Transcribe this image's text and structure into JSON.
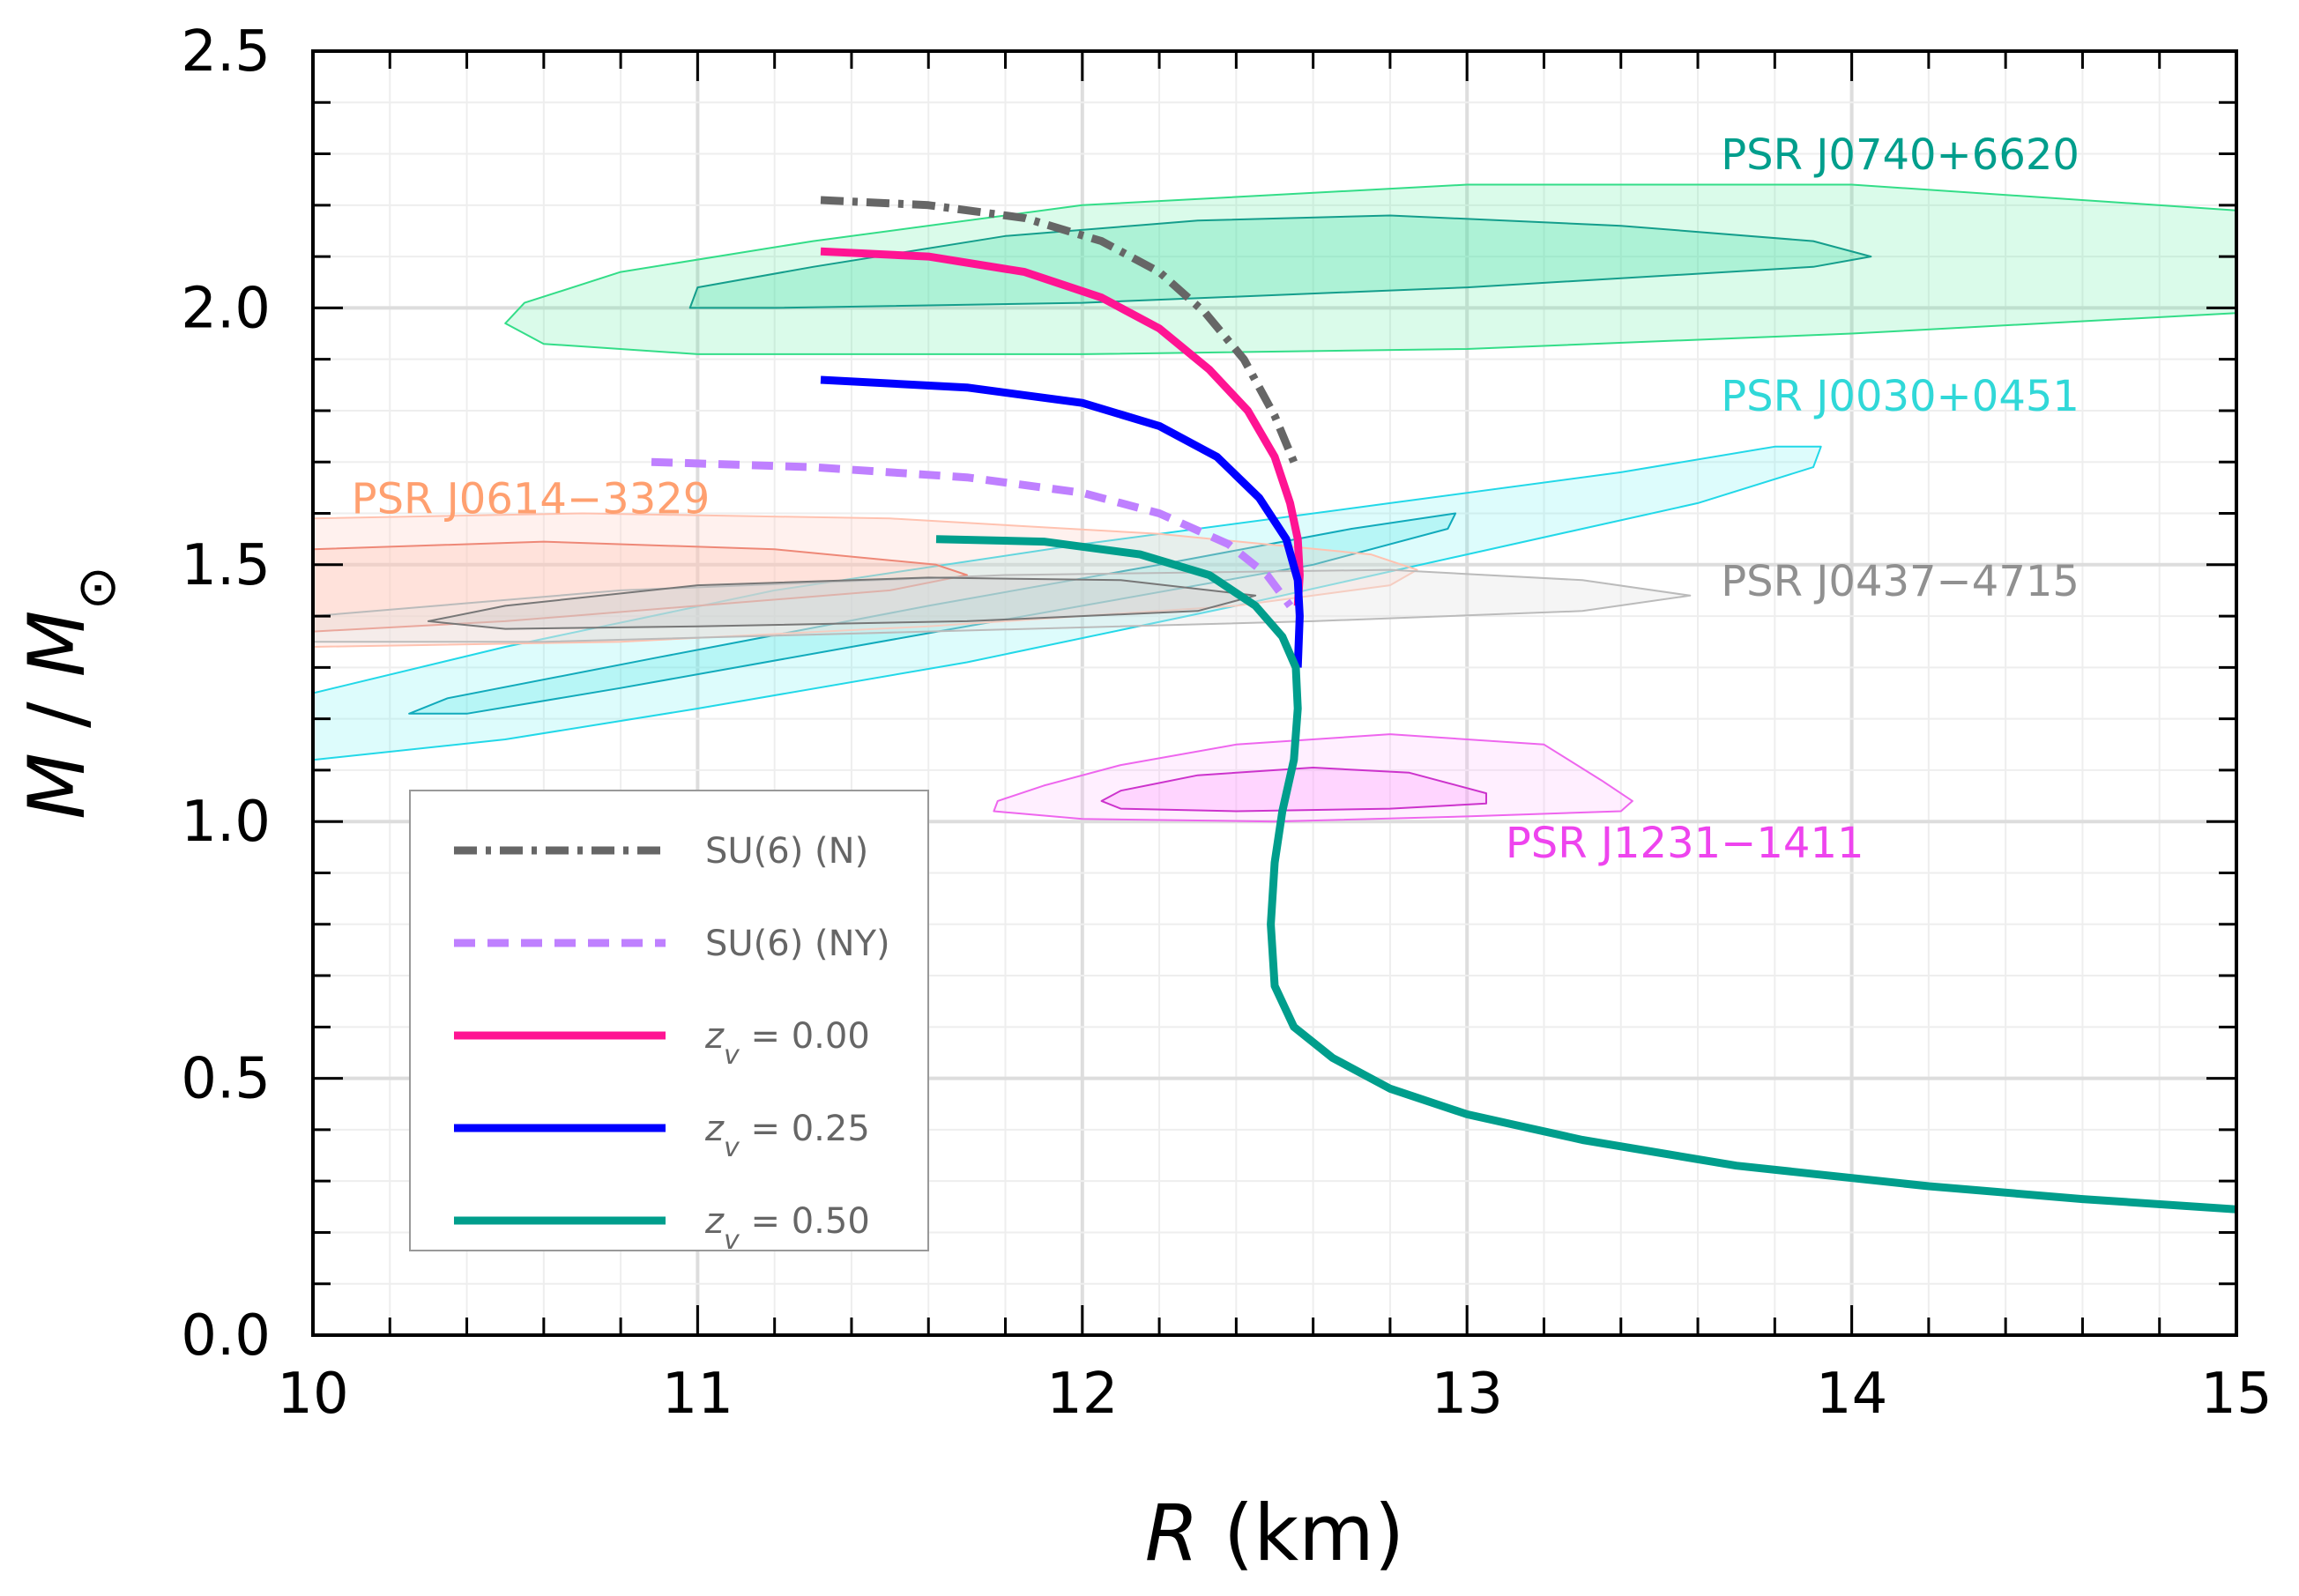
{
  "chart_data": {
    "type": "line",
    "xlabel": "R (km)",
    "xlabel_var": "R",
    "xlabel_unit": " (km)",
    "ylabel": "M / M⊙",
    "ylabel_var": "M",
    "ylabel_sep": " / ",
    "ylabel_sub": "M",
    "ylabel_sun": "⊙",
    "xlim": [
      10,
      15
    ],
    "ylim": [
      0,
      2.5
    ],
    "grid": true,
    "x_ticks": [
      10,
      11,
      12,
      13,
      14,
      15
    ],
    "y_ticks": [
      0.0,
      0.5,
      1.0,
      1.5,
      2.0,
      2.5
    ],
    "x_tick_labels": [
      "10",
      "11",
      "12",
      "13",
      "14",
      "15"
    ],
    "y_tick_labels": [
      "0.0",
      "0.5",
      "1.0",
      "1.5",
      "2.0",
      "2.5"
    ],
    "legend_location": "lower-left",
    "series": [
      {
        "name": "SU(6) (N)",
        "name_main": "SU(6) (N)",
        "color": "#666666",
        "style": "dashdot",
        "points": [
          [
            11.32,
            2.21
          ],
          [
            11.6,
            2.2
          ],
          [
            11.85,
            2.175
          ],
          [
            12.05,
            2.13
          ],
          [
            12.2,
            2.07
          ],
          [
            12.32,
            1.99
          ],
          [
            12.42,
            1.9
          ],
          [
            12.5,
            1.79
          ],
          [
            12.55,
            1.7
          ]
        ]
      },
      {
        "name": "SU(6) (NY)",
        "name_main": "SU(6) (NY)",
        "color": "#bf80ff",
        "style": "dashed",
        "points": [
          [
            10.88,
            1.7
          ],
          [
            11.3,
            1.69
          ],
          [
            11.7,
            1.67
          ],
          [
            12.0,
            1.64
          ],
          [
            12.2,
            1.6
          ],
          [
            12.38,
            1.54
          ],
          [
            12.48,
            1.48
          ],
          [
            12.54,
            1.42
          ]
        ]
      },
      {
        "name": "zv = 0.00",
        "name_var": "z",
        "name_sub": "v",
        "name_rest": " = 0.00",
        "color": "#ff1493",
        "style": "solid",
        "points": [
          [
            11.32,
            2.11
          ],
          [
            11.6,
            2.1
          ],
          [
            11.85,
            2.07
          ],
          [
            12.05,
            2.02
          ],
          [
            12.2,
            1.96
          ],
          [
            12.33,
            1.88
          ],
          [
            12.43,
            1.8
          ],
          [
            12.5,
            1.71
          ],
          [
            12.54,
            1.62
          ],
          [
            12.56,
            1.55
          ],
          [
            12.565,
            1.48
          ],
          [
            12.56,
            1.42
          ]
        ]
      },
      {
        "name": "zv = 0.25",
        "name_var": "z",
        "name_sub": "v",
        "name_rest": " = 0.25",
        "color": "#0000ff",
        "style": "solid",
        "points": [
          [
            11.32,
            1.86
          ],
          [
            11.7,
            1.845
          ],
          [
            12.0,
            1.815
          ],
          [
            12.2,
            1.77
          ],
          [
            12.35,
            1.71
          ],
          [
            12.46,
            1.63
          ],
          [
            12.53,
            1.55
          ],
          [
            12.56,
            1.47
          ],
          [
            12.565,
            1.4
          ],
          [
            12.56,
            1.3
          ]
        ]
      },
      {
        "name": "zv = 0.50",
        "name_var": "z",
        "name_sub": "v",
        "name_rest": " = 0.50",
        "color": "#009e8c",
        "style": "solid",
        "points": [
          [
            11.62,
            1.55
          ],
          [
            11.9,
            1.545
          ],
          [
            12.15,
            1.52
          ],
          [
            12.33,
            1.48
          ],
          [
            12.45,
            1.42
          ],
          [
            12.52,
            1.36
          ],
          [
            12.555,
            1.3
          ],
          [
            12.56,
            1.22
          ],
          [
            12.55,
            1.12
          ],
          [
            12.52,
            1.02
          ],
          [
            12.5,
            0.92
          ],
          [
            12.49,
            0.8
          ],
          [
            12.5,
            0.68
          ],
          [
            12.55,
            0.6
          ],
          [
            12.65,
            0.54
          ],
          [
            12.8,
            0.48
          ],
          [
            13.0,
            0.43
          ],
          [
            13.3,
            0.38
          ],
          [
            13.7,
            0.33
          ],
          [
            14.2,
            0.29
          ],
          [
            14.6,
            0.265
          ],
          [
            15.0,
            0.245
          ]
        ]
      }
    ],
    "regions": [
      {
        "name": "PSR J0740+6620",
        "label_color": "#009e8c",
        "outer": {
          "fill": "#55eea0",
          "stroke": "#33dd88",
          "fill_opacity": 0.22,
          "points": [
            [
              10.5,
              1.97
            ],
            [
              10.55,
              2.01
            ],
            [
              10.8,
              2.07
            ],
            [
              11.3,
              2.13
            ],
            [
              12.0,
              2.2
            ],
            [
              13.0,
              2.24
            ],
            [
              14.0,
              2.24
            ],
            [
              15.0,
              2.19
            ],
            [
              15.0,
              1.99
            ],
            [
              14.0,
              1.95
            ],
            [
              13.0,
              1.92
            ],
            [
              12.0,
              1.91
            ],
            [
              11.0,
              1.91
            ],
            [
              10.6,
              1.93
            ]
          ]
        },
        "inner": {
          "fill": "#44ddaa",
          "stroke": "#149e8c",
          "fill_opacity": 0.3,
          "points": [
            [
              10.98,
              2.0
            ],
            [
              11.0,
              2.04
            ],
            [
              11.3,
              2.08
            ],
            [
              11.8,
              2.14
            ],
            [
              12.3,
              2.17
            ],
            [
              12.8,
              2.18
            ],
            [
              13.4,
              2.16
            ],
            [
              13.9,
              2.13
            ],
            [
              14.05,
              2.1
            ],
            [
              13.9,
              2.08
            ],
            [
              13.0,
              2.04
            ],
            [
              12.0,
              2.01
            ],
            [
              11.2,
              2.0
            ]
          ]
        }
      },
      {
        "name": "PSR J0030+0451",
        "label_color": "#30d8d8",
        "outer": {
          "fill": "#66f2f2",
          "stroke": "#22d8e8",
          "fill_opacity": 0.22,
          "points": [
            [
              10.0,
              1.25
            ],
            [
              10.5,
              1.34
            ],
            [
              11.2,
              1.45
            ],
            [
              12.0,
              1.54
            ],
            [
              12.8,
              1.62
            ],
            [
              13.4,
              1.68
            ],
            [
              13.8,
              1.73
            ],
            [
              13.92,
              1.73
            ],
            [
              13.9,
              1.69
            ],
            [
              13.6,
              1.62
            ],
            [
              13.0,
              1.52
            ],
            [
              12.4,
              1.42
            ],
            [
              11.7,
              1.31
            ],
            [
              11.0,
              1.22
            ],
            [
              10.5,
              1.16
            ],
            [
              10.0,
              1.12
            ]
          ]
        },
        "inner": {
          "fill": "#55e5e5",
          "stroke": "#11aabb",
          "fill_opacity": 0.28,
          "points": [
            [
              10.25,
              1.21
            ],
            [
              10.35,
              1.24
            ],
            [
              10.9,
              1.32
            ],
            [
              11.6,
              1.42
            ],
            [
              12.2,
              1.5
            ],
            [
              12.7,
              1.57
            ],
            [
              12.97,
              1.6
            ],
            [
              12.95,
              1.57
            ],
            [
              12.6,
              1.5
            ],
            [
              12.0,
              1.42
            ],
            [
              11.4,
              1.34
            ],
            [
              10.8,
              1.26
            ],
            [
              10.4,
              1.21
            ]
          ]
        }
      },
      {
        "name": "PSR J0614−3329",
        "label_color": "#ffa070",
        "outer": {
          "fill": "#ffd0c8",
          "stroke": "#ffc2b0",
          "fill_opacity": 0.3,
          "points": [
            [
              10.0,
              1.59
            ],
            [
              10.7,
              1.6
            ],
            [
              11.5,
              1.59
            ],
            [
              12.2,
              1.56
            ],
            [
              12.75,
              1.52
            ],
            [
              12.87,
              1.49
            ],
            [
              12.8,
              1.46
            ],
            [
              12.4,
              1.42
            ],
            [
              11.6,
              1.38
            ],
            [
              10.8,
              1.35
            ],
            [
              10.0,
              1.34
            ]
          ]
        },
        "inner": {
          "fill": "#ffc0b0",
          "stroke": "#ee8877",
          "fill_opacity": 0.3,
          "points": [
            [
              10.0,
              1.53
            ],
            [
              10.6,
              1.545
            ],
            [
              11.2,
              1.53
            ],
            [
              11.62,
              1.5
            ],
            [
              11.7,
              1.48
            ],
            [
              11.5,
              1.45
            ],
            [
              11.0,
              1.42
            ],
            [
              10.5,
              1.39
            ],
            [
              10.0,
              1.37
            ]
          ]
        }
      },
      {
        "name": "PSR J0437−4715",
        "label_color": "#909090",
        "outer": {
          "fill": "#e2e2e2",
          "stroke": "#bbbbbb",
          "fill_opacity": 0.35,
          "points": [
            [
              10.0,
              1.4
            ],
            [
              10.8,
              1.45
            ],
            [
              11.8,
              1.48
            ],
            [
              12.8,
              1.49
            ],
            [
              13.3,
              1.47
            ],
            [
              13.58,
              1.44
            ],
            [
              13.3,
              1.41
            ],
            [
              12.6,
              1.39
            ],
            [
              11.6,
              1.37
            ],
            [
              10.6,
              1.35
            ],
            [
              10.0,
              1.35
            ]
          ]
        },
        "inner": {
          "fill": "#c8c8c8",
          "stroke": "#777777",
          "fill_opacity": 0.35,
          "points": [
            [
              10.3,
              1.39
            ],
            [
              10.5,
              1.42
            ],
            [
              11.0,
              1.46
            ],
            [
              11.6,
              1.475
            ],
            [
              12.1,
              1.47
            ],
            [
              12.45,
              1.44
            ],
            [
              12.3,
              1.41
            ],
            [
              11.7,
              1.39
            ],
            [
              11.0,
              1.38
            ],
            [
              10.5,
              1.375
            ]
          ]
        }
      },
      {
        "name": "PSR J1231−1411",
        "label_color": "#ee44ee",
        "outer": {
          "fill": "#ffb8ff",
          "stroke": "#ee66ee",
          "fill_opacity": 0.22,
          "points": [
            [
              11.77,
              1.02
            ],
            [
              11.78,
              1.04
            ],
            [
              11.9,
              1.07
            ],
            [
              12.1,
              1.11
            ],
            [
              12.4,
              1.15
            ],
            [
              12.8,
              1.17
            ],
            [
              13.2,
              1.15
            ],
            [
              13.35,
              1.08
            ],
            [
              13.43,
              1.04
            ],
            [
              13.4,
              1.02
            ],
            [
              13.0,
              1.01
            ],
            [
              12.5,
              1.0
            ],
            [
              12.0,
              1.005
            ]
          ]
        },
        "inner": {
          "fill": "#ff99ff",
          "stroke": "#cc33cc",
          "fill_opacity": 0.3,
          "points": [
            [
              12.05,
              1.04
            ],
            [
              12.1,
              1.06
            ],
            [
              12.3,
              1.09
            ],
            [
              12.6,
              1.105
            ],
            [
              12.85,
              1.095
            ],
            [
              13.05,
              1.055
            ],
            [
              13.05,
              1.035
            ],
            [
              12.8,
              1.025
            ],
            [
              12.4,
              1.02
            ],
            [
              12.1,
              1.025
            ]
          ]
        }
      }
    ],
    "annotations": [
      {
        "text": "PSR J0740+6620",
        "color": "#009e8c",
        "x": 13.66,
        "y": 2.27
      },
      {
        "text": "PSR J0030+0451",
        "color": "#30d8d8",
        "x": 13.66,
        "y": 1.8
      },
      {
        "text": "PSR J0614−3329",
        "color": "#ffa070",
        "x": 10.1,
        "y": 1.6
      },
      {
        "text": "PSR J0437−4715",
        "color": "#909090",
        "x": 13.66,
        "y": 1.44
      },
      {
        "text": "PSR J1231−1411",
        "color": "#ee44ee",
        "x": 13.1,
        "y": 0.93
      }
    ]
  }
}
